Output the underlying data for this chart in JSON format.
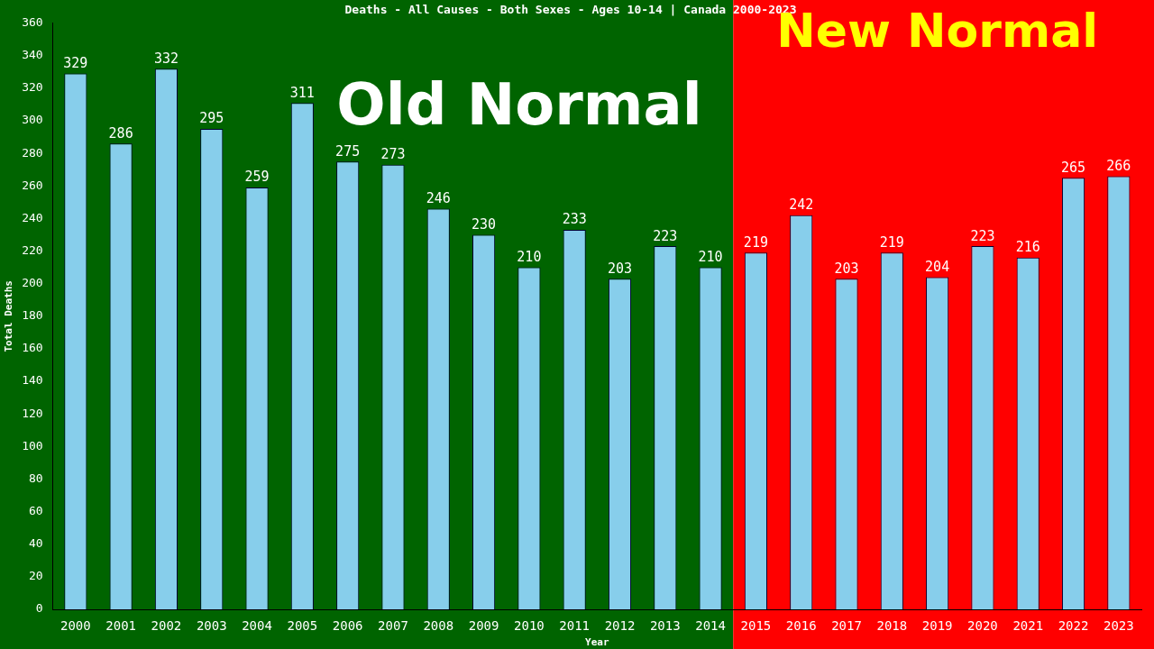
{
  "chart_data": {
    "type": "bar",
    "title": "Deaths - All Causes - Both Sexes - Ages 10-14 | Canada 2000-2023",
    "xlabel": "Year",
    "ylabel": "Total Deaths",
    "categories": [
      "2000",
      "2001",
      "2002",
      "2003",
      "2004",
      "2005",
      "2006",
      "2007",
      "2008",
      "2009",
      "2010",
      "2011",
      "2012",
      "2013",
      "2014",
      "2015",
      "2016",
      "2017",
      "2018",
      "2019",
      "2020",
      "2021",
      "2022",
      "2023"
    ],
    "values": [
      329,
      286,
      332,
      295,
      259,
      311,
      275,
      273,
      246,
      230,
      210,
      233,
      203,
      223,
      210,
      219,
      242,
      203,
      219,
      204,
      223,
      216,
      265,
      266
    ],
    "color": "#87ceeb",
    "data_labels": true,
    "ylim": [
      0,
      360
    ],
    "yticks": [
      0,
      20,
      40,
      60,
      80,
      100,
      120,
      140,
      160,
      180,
      200,
      220,
      240,
      260,
      280,
      300,
      320,
      340,
      360
    ],
    "grid": false,
    "legend": false,
    "bands": [
      {
        "axis": "x",
        "from": "2000",
        "to": "2014",
        "label": "Old Normal",
        "color": "#006400"
      },
      {
        "axis": "x",
        "from": "2015",
        "to": "2023",
        "label": "New Normal",
        "color": "#ff0000"
      }
    ]
  }
}
